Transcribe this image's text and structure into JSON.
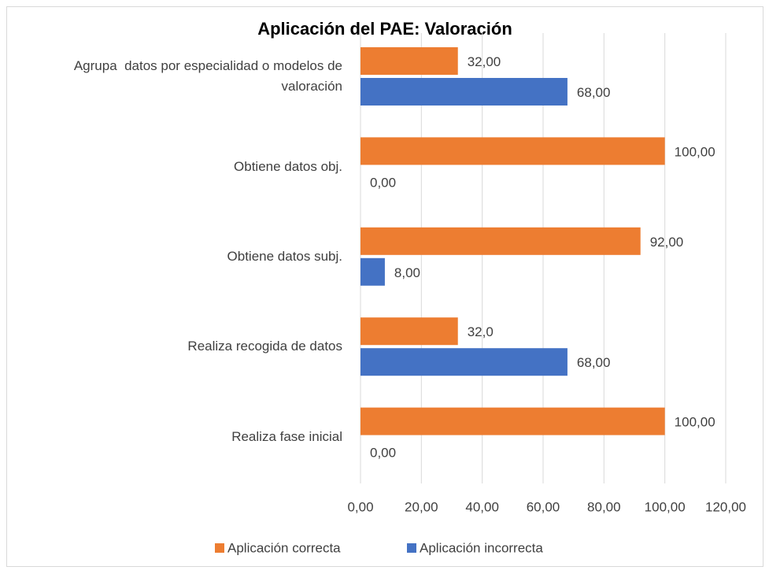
{
  "chart_data": {
    "type": "barh",
    "title": "Aplicación del PAE: Valoración",
    "categories": [
      "Agrupa  datos por especialidad o modelos de valoración",
      "Obtiene datos obj.",
      "Obtiene datos subj.",
      "Realiza recogida de datos",
      "Realiza fase inicial"
    ],
    "series": [
      {
        "name": "Aplicación correcta",
        "color": "#ed7d31",
        "values": [
          32,
          100,
          92,
          32,
          100
        ],
        "value_labels": [
          "32,00",
          "100,00",
          "92,00",
          "32,0",
          "100,00"
        ]
      },
      {
        "name": "Aplicación incorrecta",
        "color": "#4472c4",
        "values": [
          68,
          0,
          8,
          68,
          0
        ],
        "value_labels": [
          "68,00",
          "0,00",
          "8,00",
          "68,00",
          "0,00"
        ]
      }
    ],
    "xlim": [
      0,
      120
    ],
    "xticks": [
      {
        "value": 0,
        "label": "0,00"
      },
      {
        "value": 20,
        "label": "20,00"
      },
      {
        "value": 40,
        "label": "40,00"
      },
      {
        "value": 60,
        "label": "60,00"
      },
      {
        "value": 80,
        "label": "80,00"
      },
      {
        "value": 100,
        "label": "100,00"
      },
      {
        "value": 120,
        "label": "120,00"
      }
    ],
    "grid": true,
    "legend": "bottom"
  }
}
